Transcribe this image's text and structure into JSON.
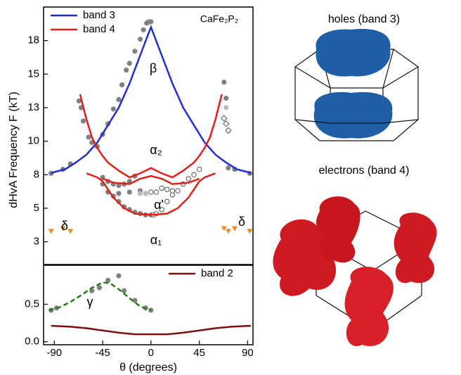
{
  "chart_data": [
    {
      "type": "line",
      "ylabel": "dHvA Frequency F (kT)",
      "xlim": [
        -100,
        95
      ],
      "ylim": [
        0.8,
        20
      ],
      "yticks": [
        {
          "value": 2.5,
          "label": "3"
        },
        5,
        {
          "value": 7.5,
          "label": "8"
        },
        10,
        {
          "value": 12.5,
          "label": "13"
        },
        15,
        {
          "value": 17.5,
          "label": "18"
        }
      ],
      "legend": "upper left",
      "annotations": [
        {
          "text": "CaFe₂P₂",
          "color": "#000000"
        },
        {
          "text": "β",
          "color": "#1f2fd0"
        },
        {
          "text": "α₂",
          "color": "#e0201a"
        },
        {
          "text": "α'",
          "color": "#e0201a"
        },
        {
          "text": "α₁",
          "color": "#e0201a"
        },
        {
          "text": "δ",
          "color": "#f08a1c"
        },
        {
          "text": "δ",
          "color": "#f08a1c"
        }
      ],
      "series": [
        {
          "name": "band 3",
          "type": "line",
          "color": "#1f2fd0",
          "x": [
            -93,
            -90,
            -80,
            -70,
            -60,
            -50,
            -40,
            -30,
            -20,
            -10,
            0,
            10,
            20,
            30,
            40,
            50,
            60,
            70,
            80,
            90,
            93
          ],
          "values": [
            7.6,
            7.7,
            7.9,
            8.4,
            9.0,
            9.9,
            11.2,
            12.5,
            14.3,
            16.4,
            18.5,
            16.4,
            14.3,
            12.5,
            11.2,
            9.9,
            9.0,
            8.4,
            7.9,
            7.7,
            7.6
          ]
        },
        {
          "name": "band 4",
          "type": "line",
          "color": "#e0201a",
          "x": [
            -66,
            -60,
            -55,
            -50,
            -45,
            -40,
            -30,
            -20,
            -10,
            0,
            10,
            20,
            30,
            40,
            45,
            50,
            55,
            60,
            66,
            null,
            -45,
            -35,
            -20,
            -10,
            0,
            10,
            20,
            35,
            45,
            null,
            -60,
            -50,
            -45,
            -35,
            -25,
            -15,
            0,
            15,
            25,
            35,
            45,
            50,
            60
          ],
          "values": [
            13.5,
            11.6,
            10.3,
            9.5,
            8.9,
            8.4,
            7.8,
            7.3,
            7.6,
            8.0,
            7.6,
            7.3,
            7.8,
            8.4,
            8.9,
            9.5,
            10.3,
            11.6,
            13.5,
            null,
            7.2,
            6.9,
            6.8,
            7.2,
            7.4,
            7.2,
            6.8,
            6.9,
            7.2,
            null,
            7.6,
            7.3,
            7.0,
            5.8,
            5.0,
            4.6,
            4.5,
            4.6,
            5.0,
            5.8,
            7.0,
            7.3,
            7.6
          ]
        },
        {
          "type": "scatter",
          "marker": "circle",
          "color": "#808080",
          "x": [
            -93,
            -82,
            -75,
            -67,
            -65,
            -63,
            -58,
            -55,
            -50,
            -45,
            -40,
            -35,
            -30,
            -27,
            -23,
            -20,
            -15,
            -10,
            -7,
            -4,
            -2,
            0,
            -45,
            -40,
            -35,
            -30,
            -25,
            -20,
            -15,
            -45,
            -40,
            -35,
            -30,
            -25,
            -20,
            -15,
            -10,
            -5,
            0,
            -30,
            -20,
            -10,
            68,
            70,
            72,
            78,
            92
          ],
          "values": [
            7.6,
            7.9,
            8.3,
            13.0,
            12.5,
            11.5,
            10.3,
            9.9,
            9.6,
            10.5,
            11.3,
            12.4,
            13.1,
            14.2,
            15.3,
            15.8,
            16.7,
            17.6,
            18.3,
            18.8,
            18.9,
            18.9,
            7.3,
            7.0,
            6.8,
            6.7,
            6.8,
            7.0,
            7.4,
            6.8,
            6.2,
            5.9,
            5.5,
            5.1,
            4.9,
            4.7,
            4.6,
            4.5,
            4.5,
            6.1,
            6.2,
            6.3,
            14.4,
            13.2,
            8.0,
            7.9,
            7.6
          ]
        },
        {
          "type": "scatter",
          "marker": "open-circle",
          "color": "#555555",
          "x": [
            2,
            5,
            10,
            15,
            20,
            25,
            30,
            35,
            40,
            45,
            0,
            5,
            10,
            15,
            20
          ],
          "values": [
            4.5,
            4.6,
            4.9,
            5.5,
            6.0,
            6.3,
            6.8,
            7.2,
            7.5,
            7.9,
            6.2,
            6.2,
            6.5,
            6.4,
            6.3
          ]
        },
        {
          "type": "scatter",
          "marker": "circle",
          "color": "#bbbbbb",
          "x": [
            70,
            -5,
            -10
          ],
          "values": [
            12.5,
            6.1,
            6.1
          ]
        },
        {
          "type": "scatter",
          "marker": "open-diamond",
          "color": "#555555",
          "x": [
            68,
            70,
            72
          ],
          "values": [
            11.7,
            11.3,
            10.8
          ]
        },
        {
          "type": "scatter",
          "marker": "triangle-down",
          "color": "#f08a1c",
          "x": [
            -93,
            -82,
            -75,
            68,
            72,
            78,
            92
          ],
          "values": [
            3.3,
            3.5,
            3.3,
            3.5,
            3.3,
            3.5,
            3.3
          ]
        }
      ]
    },
    {
      "type": "line",
      "xlabel": "θ (degrees)",
      "xlim": [
        -100,
        95
      ],
      "ylim": [
        -0.04,
        1.02
      ],
      "xticks": [
        -90,
        -45,
        0,
        45,
        90
      ],
      "yticks": [
        {
          "value": 0,
          "label": "0.0"
        },
        0.5
      ],
      "legend": "upper right",
      "annotations": [
        {
          "text": "γ",
          "color": "#2a7a1a"
        }
      ],
      "series": [
        {
          "name": "band 2",
          "type": "line",
          "color": "#7a1010",
          "x": [
            -93,
            -90,
            -75,
            -60,
            -45,
            -30,
            -15,
            0,
            15,
            30,
            45,
            60,
            75,
            90,
            93
          ],
          "values": [
            0.21,
            0.21,
            0.2,
            0.18,
            0.15,
            0.12,
            0.1,
            0.1,
            0.1,
            0.12,
            0.15,
            0.18,
            0.2,
            0.21,
            0.21
          ]
        },
        {
          "type": "line",
          "dash": true,
          "color": "#2a7a1a",
          "x": [
            -95,
            -85,
            -75,
            -65,
            -55,
            -45,
            -38,
            -30,
            -20,
            -10,
            0
          ],
          "values": [
            0.42,
            0.46,
            0.53,
            0.62,
            0.72,
            0.79,
            0.78,
            0.7,
            0.58,
            0.47,
            0.42
          ]
        },
        {
          "type": "scatter",
          "marker": "circle",
          "color": "#808080",
          "x": [
            -93,
            -88,
            -55,
            -48,
            -40,
            -30,
            -25,
            -15,
            -5,
            0
          ],
          "values": [
            0.42,
            0.45,
            0.68,
            0.72,
            0.82,
            0.88,
            0.68,
            0.55,
            0.45,
            0.42
          ]
        }
      ]
    }
  ],
  "images": [
    {
      "label": "holes (band 3)"
    },
    {
      "label": "electrons (band 4)"
    }
  ]
}
